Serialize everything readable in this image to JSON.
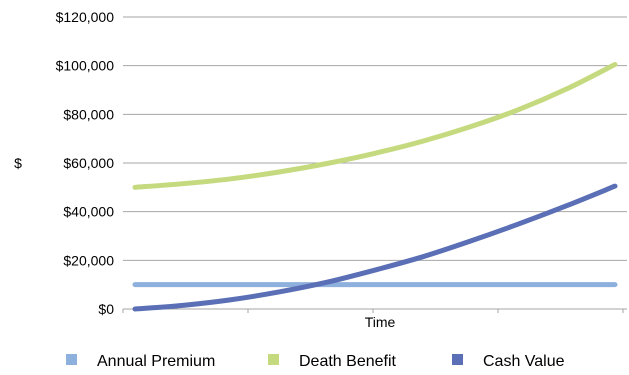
{
  "chart_data": {
    "type": "line",
    "xlabel": "Time",
    "ylabel": "$",
    "ylim": [
      0,
      120000
    ],
    "y_ticks": [
      "$0",
      "$20,000",
      "$40,000",
      "$60,000",
      "$80,000",
      "$100,000",
      "$120,000"
    ],
    "y_tick_values": [
      0,
      20000,
      40000,
      60000,
      80000,
      100000,
      120000
    ],
    "x": [
      0,
      1,
      2,
      3,
      4,
      5,
      6,
      7,
      8,
      9,
      10
    ],
    "grid": true,
    "legend_position": "bottom",
    "series": [
      {
        "name": "Annual Premium",
        "color": "#8eb0dc",
        "values": [
          10000,
          10000,
          10000,
          10000,
          10000,
          10000,
          10000,
          10000,
          10000,
          10000,
          10000
        ]
      },
      {
        "name": "Death Benefit",
        "color": "#c5d97f",
        "values": [
          50000,
          51500,
          53500,
          56300,
          59800,
          64000,
          69000,
          75000,
          82000,
          90500,
          100500
        ]
      },
      {
        "name": "Cash Value",
        "color": "#5a6fb5",
        "values": [
          0,
          1500,
          3800,
          7000,
          11000,
          16000,
          21500,
          28000,
          35000,
          42500,
          50500
        ]
      }
    ]
  }
}
